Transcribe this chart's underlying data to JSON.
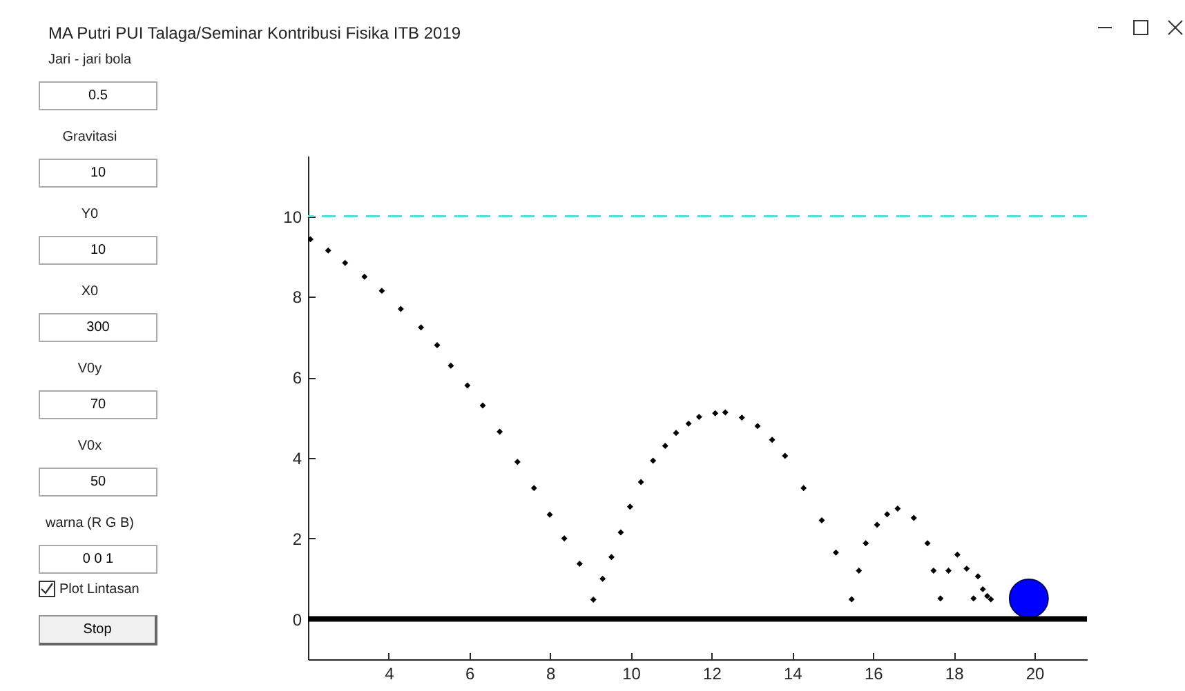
{
  "chart_data": [
    {
      "type": "scatter",
      "title": "MA Putri PUI Talaga/Seminar Kontribusi Fisika ITB 2019",
      "xlim": [
        2,
        21.3
      ],
      "xticks": [
        4,
        6,
        8,
        10,
        12,
        14,
        16,
        18,
        20
      ],
      "ylim": [
        -1,
        11.5
      ],
      "yticks": [
        0,
        2,
        4,
        6,
        8,
        10
      ],
      "grid": false,
      "series": [
        {
          "color": "#000000",
          "marker": "diamond",
          "x": [
            2.06,
            2.5,
            2.92,
            3.4,
            3.83,
            4.3,
            4.8,
            5.2,
            5.54,
            5.95,
            6.33,
            6.75,
            7.19,
            7.6,
            7.99,
            8.35,
            8.73,
            9.07,
            9.3,
            9.52,
            9.75,
            9.98,
            10.25,
            10.55,
            10.85,
            11.12,
            11.43,
            11.69,
            12.09,
            12.34,
            12.75,
            13.14,
            13.5,
            13.82,
            14.28,
            14.73,
            15.08,
            15.47,
            15.65,
            15.82,
            16.1,
            16.35,
            16.61,
            17.01,
            17.35,
            17.5,
            17.67,
            17.87,
            18.09,
            18.32,
            18.49,
            18.6,
            18.72,
            18.83,
            18.92
          ],
          "values": [
            9.43,
            9.15,
            8.84,
            8.5,
            8.15,
            7.7,
            7.24,
            6.8,
            6.29,
            5.8,
            5.3,
            4.65,
            3.9,
            3.25,
            2.59,
            2.0,
            1.37,
            0.48,
            1.0,
            1.54,
            2.15,
            2.79,
            3.4,
            3.93,
            4.3,
            4.62,
            4.85,
            5.02,
            5.11,
            5.13,
            5.0,
            4.79,
            4.45,
            4.05,
            3.25,
            2.45,
            1.65,
            0.49,
            1.2,
            1.88,
            2.34,
            2.6,
            2.74,
            2.51,
            1.88,
            1.2,
            0.51,
            1.2,
            1.6,
            1.25,
            0.51,
            1.06,
            0.74,
            0.57,
            0.49
          ]
        },
        {
          "type": "bubble",
          "color": "#0000ff",
          "marker": "circle",
          "x": [
            19.86
          ],
          "values": [
            0.51
          ],
          "sizes": [
            1
          ]
        }
      ],
      "ref_lines": [
        {
          "axis": "y",
          "value": 10,
          "color": "#55dddd",
          "line_style": "dashed"
        },
        {
          "axis": "y",
          "value": 0,
          "color": "#000000",
          "line_style": "solid"
        }
      ]
    },
    {
      "type": "other",
      "annotations": [
        "Jari - jari bola",
        "0.5",
        "Gravitasi",
        "10",
        "Y0",
        "10",
        "X0",
        "300",
        "V0y",
        "70",
        "V0x",
        "50",
        "warna (R G B)",
        "0 0 1",
        "Plot Lintasan",
        "Stop"
      ]
    }
  ]
}
